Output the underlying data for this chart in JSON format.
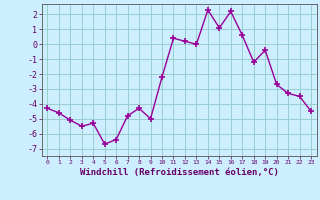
{
  "x": [
    0,
    1,
    2,
    3,
    4,
    5,
    6,
    7,
    8,
    9,
    10,
    11,
    12,
    13,
    14,
    15,
    16,
    17,
    18,
    19,
    20,
    21,
    22,
    23
  ],
  "y": [
    -4.3,
    -4.6,
    -5.1,
    -5.5,
    -5.3,
    -6.7,
    -6.4,
    -4.8,
    -4.3,
    -5.0,
    -2.2,
    0.4,
    0.2,
    0.0,
    2.3,
    1.1,
    2.2,
    0.6,
    -1.2,
    -0.4,
    -2.7,
    -3.3,
    -3.5,
    -4.5
  ],
  "line_color": "#990099",
  "marker": "+",
  "markersize": 4,
  "markeredgewidth": 1.2,
  "linewidth": 1.0,
  "bg_color": "#cceeff",
  "grid_color": "#99cccc",
  "xlabel": "Windchill (Refroidissement éolien,°C)",
  "ylim": [
    -7.5,
    2.7
  ],
  "xlim": [
    -0.5,
    23.5
  ],
  "yticks": [
    -7,
    -6,
    -5,
    -4,
    -3,
    -2,
    -1,
    0,
    1,
    2
  ],
  "xticks": [
    0,
    1,
    2,
    3,
    4,
    5,
    6,
    7,
    8,
    9,
    10,
    11,
    12,
    13,
    14,
    15,
    16,
    17,
    18,
    19,
    20,
    21,
    22,
    23
  ],
  "tick_color": "#660066",
  "label_color": "#660066"
}
